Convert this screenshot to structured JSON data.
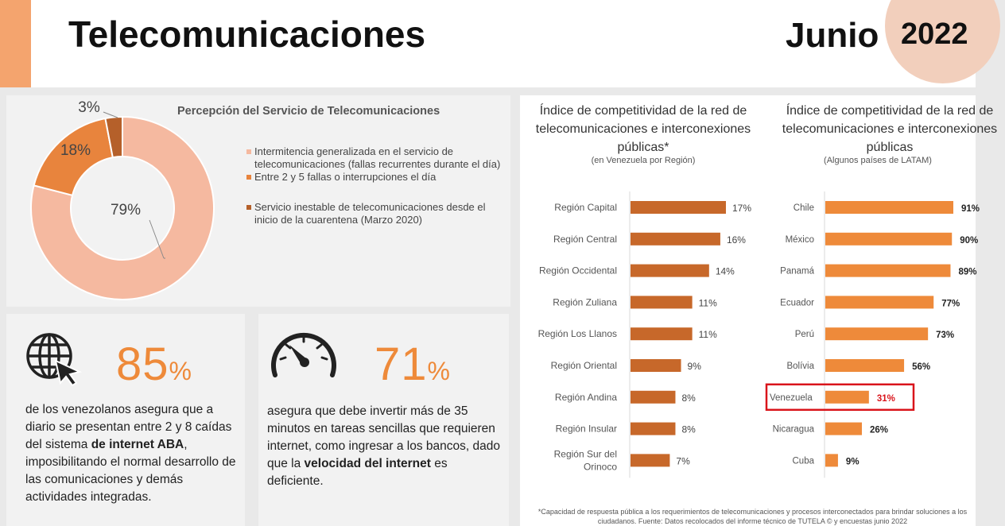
{
  "header": {
    "title": "Telecomunicaciones",
    "month": "Junio",
    "year": "2022"
  },
  "donut": {
    "title": "Percepción del Servicio de Telecomunicaciones",
    "slices": [
      {
        "label": "79%",
        "value": 79,
        "color": "#f5b9a0",
        "legend": "Intermitencia generalizada en el servicio de telecomunicaciones (fallas recurrentes durante el día)"
      },
      {
        "label": "18%",
        "value": 18,
        "color": "#e8843d",
        "legend": "Entre 2 y 5 fallas o interrupciones el día"
      },
      {
        "label": "3%",
        "value": 3,
        "color": "#b5602a",
        "legend": "Servicio inestable de telecomunicaciones desde el inicio de la cuarentena (Marzo 2020)"
      }
    ]
  },
  "stat1": {
    "value": "85",
    "pct": "%",
    "desc_a": "de los venezolanos asegura que a diario se presentan entre 2 y 8 caídas del sistema ",
    "desc_b": "de internet ABA",
    "desc_c": ", imposibilitando el normal desarrollo de las comunicaciones y demás actividades integradas."
  },
  "stat2": {
    "value": "71",
    "pct": "%",
    "desc_a": "asegura que debe invertir más de 35 minutos en tareas sencillas que requieren internet, como ingresar a los bancos, dado que la ",
    "desc_b": "velocidad del internet",
    "desc_c": " es deficiente."
  },
  "icons": {
    "globe": "globe-cursor-icon",
    "gauge": "speedometer-icon"
  },
  "colors": {
    "accent": "#f4a46e",
    "bar_region": "#c7682a",
    "bar_country": "#ee8a3a",
    "highlight": "#d9141b"
  },
  "chart_data": [
    {
      "type": "bar",
      "orientation": "horizontal",
      "title": "Índice de competitividad de la red de telecomunicaciones e interconexiones públicas*",
      "subtitle": "(en Venezuela por Región)",
      "categories": [
        "Región Capital",
        "Región Central",
        "Región Occidental",
        "Región Zuliana",
        "Región Los Llanos",
        "Región Oriental",
        "Región Andina",
        "Región Insular",
        "Región Sur del Orinoco"
      ],
      "values": [
        17,
        16,
        14,
        11,
        11,
        9,
        8,
        8,
        7
      ],
      "value_labels": [
        "17%",
        "16%",
        "14%",
        "11%",
        "11%",
        "9%",
        "8%",
        "8%",
        "7%"
      ],
      "xlim": [
        0,
        20
      ]
    },
    {
      "type": "bar",
      "orientation": "horizontal",
      "title": "Índice de competitividad de la red de telecomunicaciones e interconexiones públicas",
      "subtitle": "(Algunos países de LATAM)",
      "categories": [
        "Chile",
        "México",
        "Panamá",
        "Ecuador",
        "Perú",
        "Bolívia",
        "Venezuela",
        "Nicaragua",
        "Cuba"
      ],
      "values": [
        91,
        90,
        89,
        77,
        73,
        56,
        31,
        26,
        9
      ],
      "value_labels": [
        "91%",
        "90%",
        "89%",
        "77%",
        "73%",
        "56%",
        "31%",
        "26%",
        "9%"
      ],
      "highlight": "Venezuela",
      "xlim": [
        0,
        100
      ]
    }
  ],
  "footnote": "*Capacidad de respuesta pública a los requerimientos de telecomunicaciones y procesos interconectados para brindar soluciones a los ciudadanos. Fuente: Datos recolocados del informe técnico de TUTELA © y encuestas junio 2022"
}
